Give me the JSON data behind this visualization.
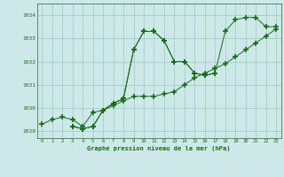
{
  "title": "Graphe pression niveau de la mer (hPa)",
  "x_hours": [
    0,
    1,
    2,
    3,
    4,
    5,
    6,
    7,
    8,
    9,
    10,
    11,
    12,
    13,
    14,
    15,
    16,
    17,
    18,
    19,
    20,
    21,
    22,
    23
  ],
  "line1_x": [
    0,
    1,
    2,
    3,
    4,
    5,
    6,
    7,
    8,
    9,
    10,
    11,
    12,
    13,
    14,
    15,
    16,
    17,
    18,
    19,
    20,
    21,
    22,
    23
  ],
  "line1_y": [
    1029.3,
    1029.5,
    1029.6,
    1029.5,
    1029.2,
    1029.8,
    1029.9,
    1030.1,
    1030.3,
    1030.5,
    1030.5,
    1030.5,
    1030.6,
    1030.7,
    1031.0,
    1031.3,
    1031.5,
    1031.7,
    1031.9,
    1032.2,
    1032.5,
    1032.8,
    1033.1,
    1033.4
  ],
  "line2_x": [
    3,
    4,
    5,
    6,
    7,
    8,
    9,
    10,
    11,
    12,
    13,
    14,
    15,
    16,
    17
  ],
  "line2_y": [
    1029.2,
    1029.1,
    1029.2,
    1029.9,
    1030.2,
    1030.4,
    1032.5,
    1033.3,
    1033.3,
    1032.9,
    1032.0,
    1032.0,
    1031.5,
    1031.4,
    1031.5
  ],
  "line3_x": [
    3,
    4,
    5,
    6,
    7,
    8,
    9,
    10,
    11,
    12,
    13,
    14,
    15,
    16,
    17,
    18,
    19,
    20,
    21,
    22,
    23
  ],
  "line3_y": [
    1029.2,
    1029.1,
    1029.2,
    1029.9,
    1030.2,
    1030.4,
    1032.5,
    1033.3,
    1033.3,
    1032.9,
    1032.0,
    1032.0,
    1031.5,
    1031.4,
    1031.5,
    1033.3,
    1033.8,
    1033.9,
    1033.9,
    1033.5,
    1033.5
  ],
  "ylim": [
    1028.7,
    1034.5
  ],
  "yticks": [
    1029,
    1030,
    1031,
    1032,
    1033,
    1034
  ],
  "line_color": "#1a6b1a",
  "bg_color": "#cce8e8",
  "grid_color": "#99ccbb",
  "label_color": "#1a6b1a",
  "spine_color": "#336633"
}
